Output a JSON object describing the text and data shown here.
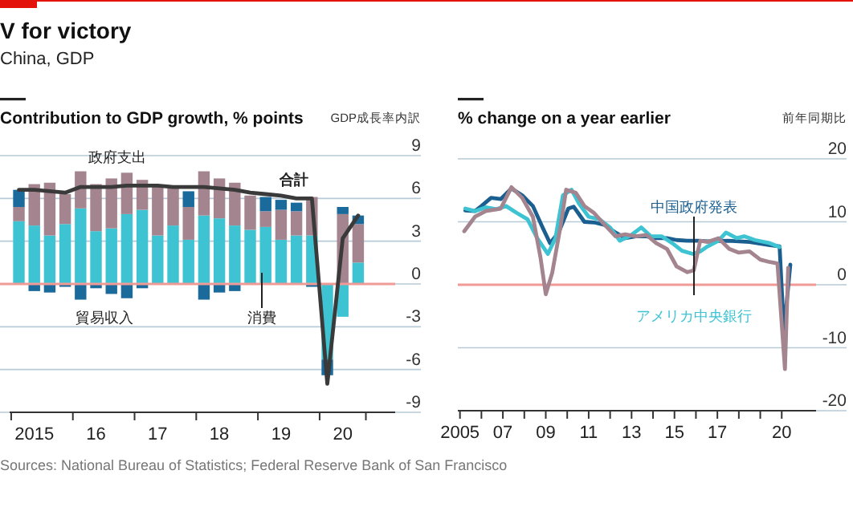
{
  "chart_data": [
    {
      "type": "bar",
      "title": "Contribution to GDP growth, % points",
      "subtitle": "GDP成長率内訳",
      "annotations": [
        "V for victory",
        "China, GDP",
        "Sources: National Bureau of Statistics; Federal Reserve Bank of San Francisco"
      ],
      "stacked": true,
      "grid": "y",
      "categories": [
        null,
        "2015",
        null,
        null,
        null,
        "16",
        null,
        null,
        null,
        "17",
        null,
        null,
        null,
        "18",
        null,
        null,
        null,
        "19",
        null,
        null,
        null,
        "20",
        null
      ],
      "series": [
        {
          "name": "消費",
          "color": "#3ec3d3",
          "values": [
            4.4,
            4.1,
            3.4,
            4.2,
            5.3,
            3.7,
            3.9,
            4.9,
            5.2,
            3.4,
            4.1,
            3.1,
            4.8,
            4.6,
            4.1,
            3.8,
            4.0,
            3.1,
            3.4,
            3.4,
            -5.3,
            -2.3,
            1.5
          ]
        },
        {
          "name": "政府支出",
          "color": "#a3848f",
          "values": [
            1.0,
            2.9,
            3.7,
            2.1,
            2.6,
            3.3,
            3.5,
            2.9,
            2.1,
            3.5,
            2.6,
            2.3,
            3.1,
            2.8,
            3.0,
            2.4,
            1.1,
            2.1,
            1.7,
            2.7,
            null,
            4.9,
            2.7
          ]
        },
        {
          "name": "貿易収入",
          "color": "#1b6a9c",
          "values": [
            1.2,
            -0.5,
            -0.6,
            -0.2,
            -1.1,
            -0.3,
            -0.7,
            -1.0,
            -0.3,
            0,
            0,
            1.1,
            -1.1,
            -0.6,
            -0.5,
            0,
            1.0,
            0.7,
            0.6,
            -0.2,
            -1.1,
            0.5,
            0.6
          ]
        },
        {
          "name": "合計",
          "type": "line",
          "color": "#3a3a3a",
          "values": [
            6.6,
            6.6,
            6.5,
            6.4,
            6.8,
            6.8,
            6.8,
            6.9,
            6.9,
            6.9,
            6.8,
            6.8,
            6.8,
            6.7,
            6.6,
            6.4,
            6.3,
            6.2,
            6.0,
            6.0,
            -7.0,
            3.2,
            4.8
          ]
        }
      ],
      "ylim": [
        -9,
        9
      ],
      "yticks": [
        -9,
        -6,
        -3,
        0,
        3,
        6,
        9
      ],
      "ref_lines": [
        {
          "axis": "y",
          "value": 0,
          "color": "#f09a96"
        }
      ]
    },
    {
      "type": "line",
      "title": "% change on a year earlier",
      "subtitle": "前年同期比",
      "grid": "y",
      "series": [
        {
          "name": "中国政府発表",
          "color": "#1b5f91",
          "x": [
            2005.25,
            2005.7,
            2006.0,
            2006.45,
            2006.9,
            2007.4,
            2007.9,
            2008.4,
            2008.85,
            2009.2,
            2009.6,
            2010.05,
            2010.3,
            2010.8,
            2011.25,
            2011.75,
            2012.25,
            2012.7,
            2013.2,
            2013.7,
            2014.15,
            2014.65,
            2015.1,
            2015.6,
            2016.1,
            2016.55,
            2017.5,
            2018.5,
            2019.45,
            2019.9,
            2020.1,
            2020.4
          ],
          "values": [
            11.8,
            11.7,
            12.5,
            13.8,
            13.6,
            15.3,
            14.2,
            12.5,
            9.1,
            6.6,
            8.3,
            12.1,
            12.4,
            10.0,
            9.9,
            9.5,
            8.3,
            7.4,
            7.7,
            7.7,
            7.4,
            7.4,
            7.1,
            7.0,
            7.0,
            6.9,
            7.0,
            6.8,
            6.3,
            6.1,
            -7.5,
            3.2
          ]
        },
        {
          "name": "アメリカ中央銀行",
          "color": "#3ec3d3",
          "x": [
            2005.25,
            2005.7,
            2006.2,
            2006.7,
            2007.15,
            2007.65,
            2008.15,
            2008.6,
            2009.1,
            2009.45,
            2009.8,
            2010.2,
            2010.55,
            2011.0,
            2011.5,
            2012.0,
            2012.45,
            2012.95,
            2013.45,
            2013.9,
            2014.4,
            2014.9,
            2015.35,
            2015.85,
            2016.2,
            2016.55,
            2017.05,
            2017.4,
            2017.9,
            2018.25,
            2018.75,
            2019.45,
            2019.9
          ],
          "values": [
            12.1,
            11.7,
            12.3,
            12.0,
            12.5,
            11.4,
            10.4,
            7.4,
            4.9,
            7.4,
            14.2,
            15.1,
            12.9,
            10.8,
            10.4,
            9.1,
            7.0,
            7.8,
            9.1,
            7.7,
            7.7,
            6.6,
            5.4,
            4.9,
            5.3,
            6.1,
            7.0,
            8.3,
            7.4,
            7.7,
            7.1,
            6.6,
            6.0
          ]
        },
        {
          "color": "#a3848f",
          "x": [
            2005.2,
            2005.7,
            2006.2,
            2006.9,
            2007.4,
            2007.9,
            2008.4,
            2008.75,
            2009.0,
            2009.3,
            2009.7,
            2009.95,
            2010.4,
            2010.8,
            2011.25,
            2011.75,
            2012.25,
            2012.7,
            2013.2,
            2013.7,
            2014.15,
            2014.65,
            2015.1,
            2015.6,
            2015.9,
            2016.2,
            2016.55,
            2017.05,
            2017.55,
            2018.0,
            2018.5,
            2019.0,
            2019.45,
            2019.8,
            2020.15,
            2020.3
          ],
          "values": [
            8.5,
            10.8,
            11.7,
            12.1,
            15.5,
            13.8,
            10.8,
            4.4,
            -1.5,
            1.9,
            9.5,
            15.1,
            14.6,
            12.5,
            11.4,
            9.5,
            7.7,
            8.0,
            7.7,
            7.9,
            6.6,
            5.7,
            2.9,
            2.0,
            2.3,
            7.0,
            6.8,
            7.4,
            5.7,
            5.1,
            5.3,
            4.0,
            3.6,
            3.4,
            -13.4,
            2.7
          ]
        }
      ],
      "xlim": [
        2004.9,
        2021.6
      ],
      "xticks": [
        {
          "value": 2005,
          "label": "2005"
        },
        {
          "value": 2006,
          "label": null
        },
        {
          "value": 2007,
          "label": "07"
        },
        {
          "value": 2008,
          "label": null
        },
        {
          "value": 2009,
          "label": "09"
        },
        {
          "value": 2010,
          "label": null
        },
        {
          "value": 2011,
          "label": "11"
        },
        {
          "value": 2012,
          "label": null
        },
        {
          "value": 2013,
          "label": "13"
        },
        {
          "value": 2014,
          "label": null
        },
        {
          "value": 2015,
          "label": "15"
        },
        {
          "value": 2016,
          "label": null
        },
        {
          "value": 2017,
          "label": "17"
        },
        {
          "value": 2018,
          "label": null
        },
        {
          "value": 2019,
          "label": null
        },
        {
          "value": 2020,
          "label": "20"
        }
      ],
      "ylim": [
        -20,
        20
      ],
      "yticks": [
        -20,
        -10,
        0,
        10,
        20
      ],
      "ref_lines": [
        {
          "axis": "y",
          "value": 0,
          "color": "#f09a96"
        }
      ]
    }
  ]
}
